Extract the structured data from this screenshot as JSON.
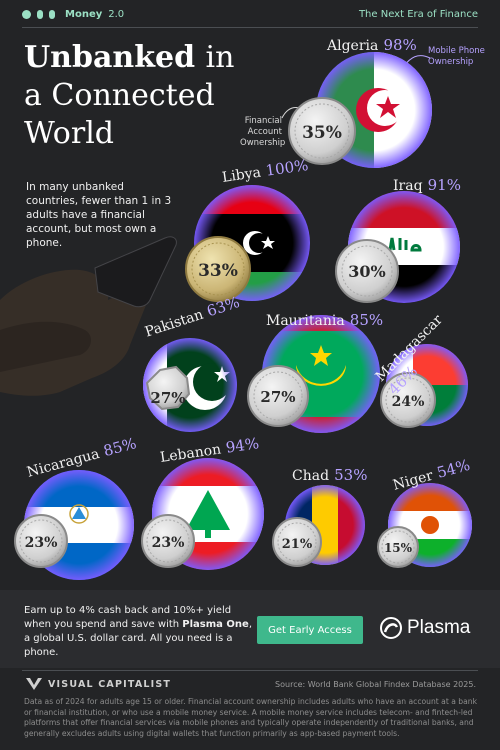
{
  "header": {
    "brand_name": "Money",
    "brand_version": "2.0",
    "tagline": "The Next Era of Finance"
  },
  "title": {
    "line1_bold": "Unbanked",
    "line1_light": "in",
    "line2": "a Connected",
    "line3": "World"
  },
  "intro_text": "In many unbanked countries, fewer than 1 in 3 adults have a financial account, but most own a phone.",
  "legend": {
    "mobile": "Mobile Phone Ownership",
    "financial": "Financial Account Ownership"
  },
  "colors": {
    "background": "#232426",
    "mobile_accent": "#b6a2ff",
    "cta_green": "#3fb88c",
    "brand_mint": "#9be0c4"
  },
  "chart_data": {
    "type": "bubble",
    "series": [
      {
        "name": "Mobile Phone Ownership"
      },
      {
        "name": "Financial Account Ownership"
      }
    ],
    "countries": [
      {
        "name": "Algeria",
        "mobile_label": "98%",
        "financial_label": "35%",
        "mobile": 98,
        "financial": 35,
        "flag": "algeria"
      },
      {
        "name": "Libya",
        "mobile_label": "100%",
        "financial_label": "33%",
        "mobile": 100,
        "financial": 33,
        "flag": "libya"
      },
      {
        "name": "Iraq",
        "mobile_label": "91%",
        "financial_label": "30%",
        "mobile": 91,
        "financial": 30,
        "flag": "iraq"
      },
      {
        "name": "Pakistan",
        "mobile_label": "63%",
        "financial_label": "27%",
        "mobile": 63,
        "financial": 27,
        "flag": "pakistan"
      },
      {
        "name": "Mauritania",
        "mobile_label": "85%",
        "financial_label": "27%",
        "mobile": 85,
        "financial": 27,
        "flag": "mauritania"
      },
      {
        "name": "Madagascar",
        "mobile_label": "46%",
        "financial_label": "24%",
        "mobile": 46,
        "financial": 24,
        "flag": "madagascar"
      },
      {
        "name": "Nicaragua",
        "mobile_label": "85%",
        "financial_label": "23%",
        "mobile": 85,
        "financial": 23,
        "flag": "nicaragua"
      },
      {
        "name": "Lebanon",
        "mobile_label": "94%",
        "financial_label": "23%",
        "mobile": 94,
        "financial": 23,
        "flag": "lebanon"
      },
      {
        "name": "Chad",
        "mobile_label": "53%",
        "financial_label": "21%",
        "mobile": 53,
        "financial": 21,
        "flag": "chad"
      },
      {
        "name": "Niger",
        "mobile_label": "54%",
        "financial_label": "15%",
        "mobile": 54,
        "financial": 15,
        "flag": "niger"
      }
    ]
  },
  "promo": {
    "text_before": "Earn up to 4% cash back and 10%+ yield when you spend and save with ",
    "text_bold": "Plasma One",
    "text_after": ", a global U.S. dollar card. All you need is a phone.",
    "cta_label": "Get Early Access",
    "partner_name": "Plasma"
  },
  "footer": {
    "publisher": "VISUAL CAPITALIST",
    "source": "Source: World Bank Global Findex Database 2025.",
    "note": "Data as of 2024 for adults age 15 or older. Financial account ownership includes adults who have an account at a bank or financial institution, or who use a mobile money service. A mobile money service includes telecom- and fintech-led platforms that offer financial services via mobile phones and typically operate independently of traditional banks, and generally excludes adults using digital wallets that function primarily as app-based payment tools."
  }
}
